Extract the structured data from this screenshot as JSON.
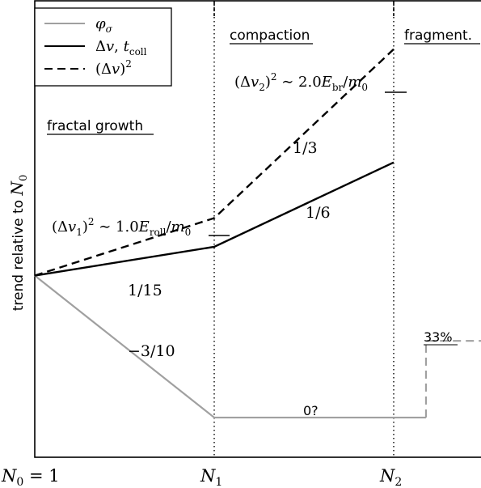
{
  "chart_data": {
    "type": "line",
    "title": "",
    "xlabel": "",
    "ylabel": "trend relative to N₀",
    "x_ticks": [
      "N₀ = 1",
      "N₁",
      "N₂"
    ],
    "x_tick_values": [
      0,
      1,
      2
    ],
    "xlim": [
      0,
      2.5
    ],
    "ylim": [
      0,
      1
    ],
    "grid": false,
    "legend_position": "top-left",
    "phases": [
      {
        "label": "fractal growth"
      },
      {
        "label": "compaction"
      },
      {
        "label": "fragment."
      }
    ],
    "legend": [
      {
        "label": "φσ",
        "style": "solid",
        "color": "#a0a0a0"
      },
      {
        "label": "Δv, t_coll",
        "style": "solid",
        "color": "#000000"
      },
      {
        "label": "(Δv)²",
        "style": "dashed",
        "color": "#000000"
      }
    ],
    "series": [
      {
        "name": "φσ",
        "color": "#a0a0a0",
        "dash": "solid",
        "points": [
          [
            0,
            0.398
          ],
          [
            1,
            0.087
          ],
          [
            2.18,
            0.087
          ]
        ]
      },
      {
        "name": "φσ (fragmentation)",
        "color": "#a0a0a0",
        "dash": "dashed",
        "points": [
          [
            2.18,
            0.087
          ],
          [
            2.18,
            0.255
          ],
          [
            2.5,
            0.255
          ]
        ]
      },
      {
        "name": "Δv, t_coll",
        "color": "#000000",
        "dash": "solid",
        "points": [
          [
            0,
            0.398
          ],
          [
            1,
            0.461
          ],
          [
            2,
            0.646
          ]
        ]
      },
      {
        "name": "(Δv)²",
        "color": "#000000",
        "dash": "dashed",
        "points": [
          [
            0,
            0.398
          ],
          [
            1,
            0.524
          ],
          [
            2,
            0.894
          ]
        ]
      }
    ],
    "annotations": [
      {
        "text": "1/15"
      },
      {
        "text": "−3/10"
      },
      {
        "text": "1/6"
      },
      {
        "text": "1/3"
      },
      {
        "text": "0?"
      },
      {
        "text": "33%"
      },
      {
        "text": "(Δv₁)² ∼ 1.0E_roll/m₀"
      },
      {
        "text": "(Δv₂)² ∼ 2.0E_br/m₀"
      }
    ]
  }
}
